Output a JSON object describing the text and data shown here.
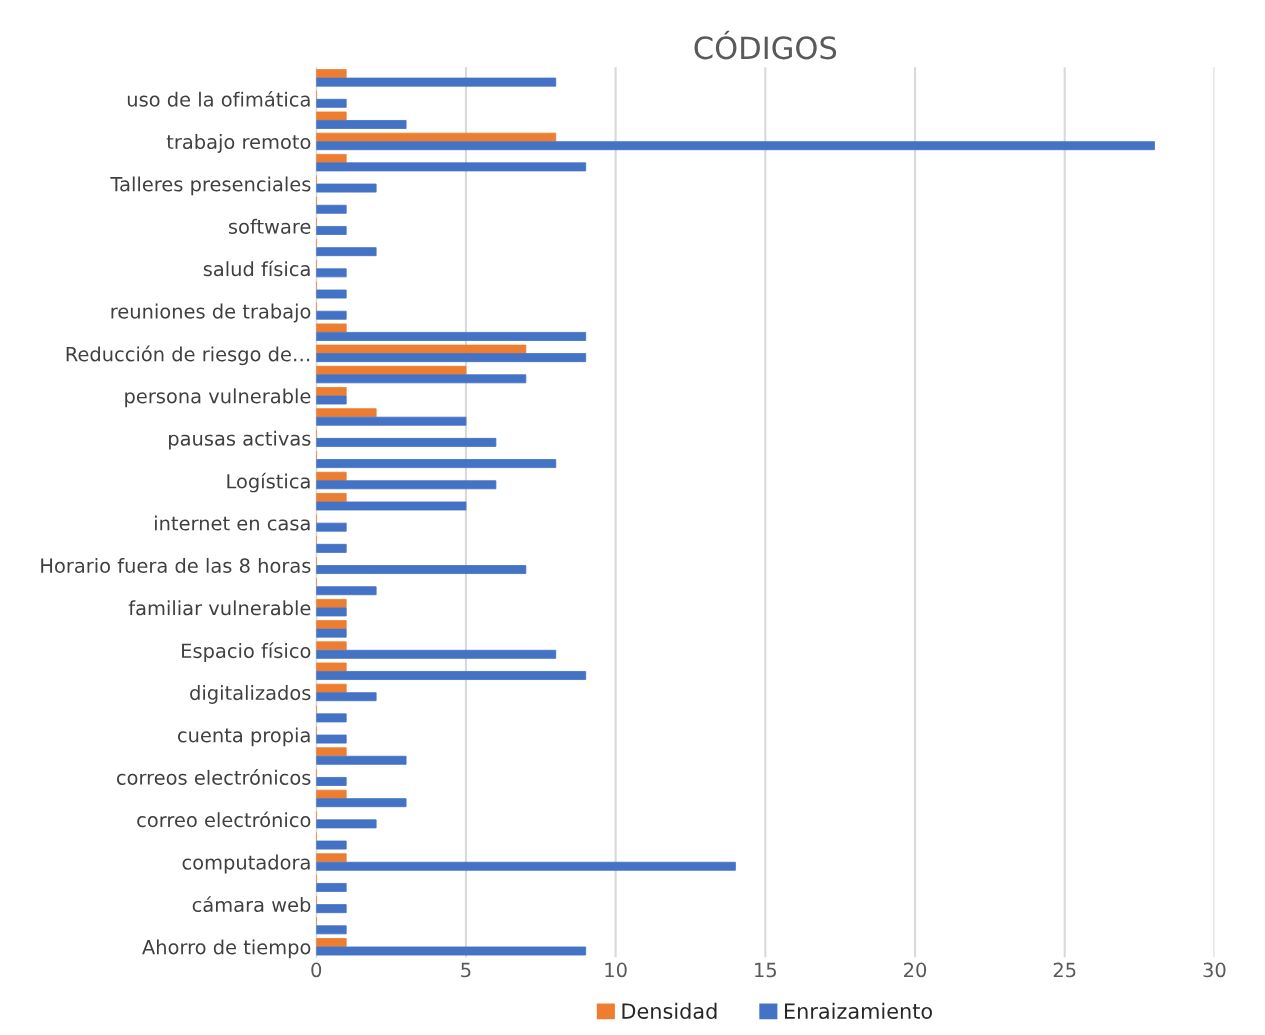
{
  "chart_data": {
    "type": "bar",
    "orientation": "horizontal",
    "title": "CÓDIGOS",
    "categories": [
      null,
      "uso de la ofimática",
      null,
      "trabajo remoto",
      null,
      "Talleres presenciales",
      null,
      "software",
      null,
      "salud física",
      null,
      "reuniones de trabajo",
      null,
      "Reducción de riesgo de…",
      null,
      "persona vulnerable",
      null,
      "pausas activas",
      null,
      "Logística",
      null,
      "internet en casa",
      null,
      "Horario fuera de las 8 horas",
      null,
      "familiar vulnerable",
      null,
      "Espacio físico",
      null,
      "digitalizados",
      null,
      "cuenta propia",
      null,
      "correos electrónicos",
      null,
      "correo electrónico",
      null,
      "computadora",
      null,
      "cámara web",
      null,
      "Ahorro de tiempo"
    ],
    "series": [
      {
        "name": "Densidad",
        "color": "#ed7d31",
        "values": [
          1,
          0,
          1,
          8,
          1,
          0,
          0,
          0,
          0,
          0,
          0,
          0,
          1,
          7,
          5,
          1,
          2,
          0,
          0,
          1,
          1,
          0,
          0,
          0,
          0,
          1,
          1,
          1,
          1,
          1,
          0,
          0,
          1,
          0,
          1,
          0,
          0,
          1,
          0,
          0,
          0,
          1
        ]
      },
      {
        "name": "Enraizamiento",
        "color": "#4472c4",
        "values": [
          8,
          1,
          3,
          28,
          9,
          2,
          1,
          1,
          2,
          1,
          1,
          1,
          9,
          9,
          7,
          1,
          5,
          6,
          8,
          6,
          5,
          1,
          1,
          7,
          2,
          1,
          1,
          8,
          9,
          2,
          1,
          1,
          3,
          1,
          3,
          2,
          1,
          14,
          1,
          1,
          1,
          9
        ]
      }
    ],
    "xlim": [
      0,
      30
    ],
    "xticks": [
      0,
      5,
      10,
      15,
      20,
      25,
      30
    ],
    "grid": "x",
    "legend": "bottom"
  }
}
